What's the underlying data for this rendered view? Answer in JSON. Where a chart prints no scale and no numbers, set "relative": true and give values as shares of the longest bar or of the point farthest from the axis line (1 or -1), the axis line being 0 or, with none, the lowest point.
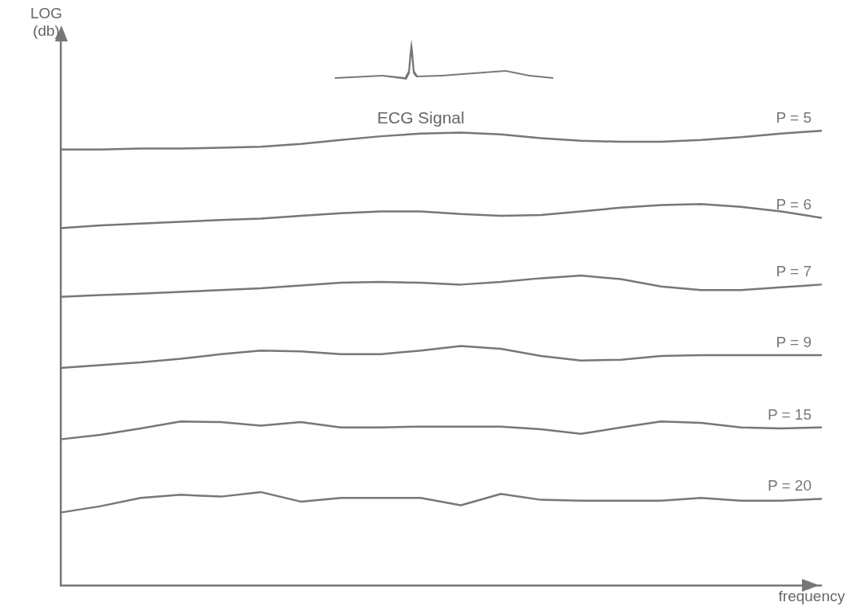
{
  "chart_data": {
    "type": "line",
    "xlabel": "frequency",
    "annotations": [
      "LOG\n(db)",
      "ECG Signal"
    ],
    "relative": true,
    "line_style": "solid",
    "categories": [
      null,
      null,
      null,
      null,
      null,
      null,
      null,
      null,
      null,
      null,
      null,
      null,
      null,
      null,
      null,
      null,
      null,
      null,
      null,
      null
    ],
    "series": [
      {
        "name": "P = 5",
        "color": "#777777",
        "values": [
          0.959,
          0.959,
          0.961,
          0.961,
          0.963,
          0.965,
          0.971,
          0.98,
          0.988,
          0.994,
          0.996,
          0.992,
          0.984,
          0.978,
          0.976,
          0.976,
          0.98,
          0.986,
          0.994,
          1
        ]
      },
      {
        "name": "P = 6",
        "color": "#777777",
        "values": [
          0.786,
          0.792,
          0.796,
          0.8,
          0.804,
          0.807,
          0.813,
          0.819,
          0.823,
          0.823,
          0.817,
          0.813,
          0.815,
          0.823,
          0.831,
          0.837,
          0.839,
          0.833,
          0.823,
          0.809
        ]
      },
      {
        "name": "P = 7",
        "color": "#777777",
        "values": [
          0.635,
          0.639,
          0.642,
          0.646,
          0.65,
          0.654,
          0.66,
          0.666,
          0.668,
          0.666,
          0.662,
          0.668,
          0.676,
          0.682,
          0.674,
          0.658,
          0.65,
          0.65,
          0.656,
          0.662
        ]
      },
      {
        "name": "P = 9",
        "color": "#777777",
        "values": [
          0.479,
          0.485,
          0.491,
          0.499,
          0.509,
          0.517,
          0.515,
          0.509,
          0.509,
          0.517,
          0.527,
          0.521,
          0.505,
          0.495,
          0.497,
          0.505,
          0.507,
          0.507,
          0.507,
          0.507
        ]
      },
      {
        "name": "P = 15",
        "color": "#777777",
        "values": [
          0.322,
          0.332,
          0.346,
          0.361,
          0.36,
          0.352,
          0.36,
          0.348,
          0.348,
          0.35,
          0.35,
          0.35,
          0.344,
          0.334,
          0.348,
          0.361,
          0.358,
          0.348,
          0.346,
          0.348
        ]
      },
      {
        "name": "P = 20",
        "color": "#777777",
        "values": [
          0.161,
          0.175,
          0.193,
          0.2,
          0.196,
          0.206,
          0.185,
          0.193,
          0.193,
          0.193,
          0.177,
          0.202,
          0.189,
          0.187,
          0.187,
          0.187,
          0.193,
          0.187,
          0.187,
          0.191
        ]
      }
    ]
  }
}
